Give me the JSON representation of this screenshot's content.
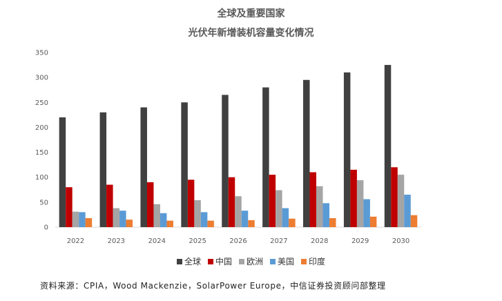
{
  "chart_data": {
    "type": "bar",
    "title": "全球及重要国家",
    "subtitle": "光伏年新增装机容量变化情况",
    "categories": [
      "2022",
      "2023",
      "2024",
      "2025",
      "2026",
      "2027",
      "2028",
      "2029",
      "2030"
    ],
    "series": [
      {
        "name": "全球",
        "color": "#404040",
        "values": [
          220,
          230,
          240,
          250,
          265,
          280,
          295,
          310,
          325
        ]
      },
      {
        "name": "中国",
        "color": "#c00000",
        "values": [
          80,
          85,
          90,
          95,
          100,
          105,
          110,
          115,
          120
        ]
      },
      {
        "name": "欧洲",
        "color": "#a5a5a5",
        "values": [
          31,
          38,
          46,
          54,
          62,
          74,
          82,
          94,
          105
        ]
      },
      {
        "name": "美国",
        "color": "#5b9bd5",
        "values": [
          30,
          33,
          28,
          30,
          33,
          38,
          48,
          56,
          65
        ]
      },
      {
        "name": "印度",
        "color": "#ed7d31",
        "values": [
          18,
          15,
          13,
          13,
          14,
          17,
          18,
          21,
          24
        ]
      }
    ],
    "yticks": [
      0,
      50,
      100,
      150,
      200,
      250,
      300,
      350
    ],
    "ylim": [
      0,
      350
    ],
    "grid": false,
    "legend_position": "bottom"
  },
  "source_note": "资料来源：CPIA，Wood Mackenzie，SolarPower Europe，中信证券投资顾问部整理"
}
